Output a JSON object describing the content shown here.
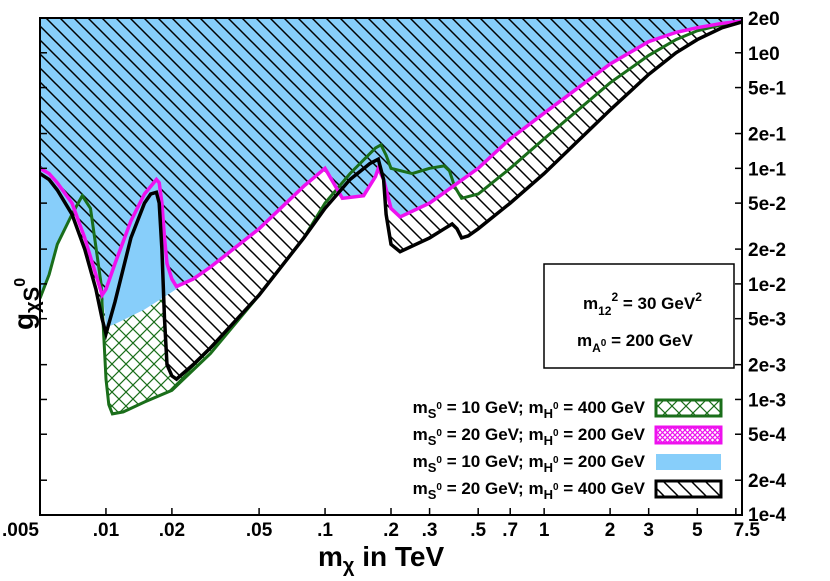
{
  "chart_data": {
    "type": "area",
    "xlabel": "m_χ in TeV",
    "ylabel": "g_χS⁰",
    "xscale": "log",
    "yscale": "log",
    "xlim": [
      0.005,
      8.0
    ],
    "ylim": [
      0.0001,
      2.0
    ],
    "x_ticks": [
      {
        "value": 0.005,
        "label": ".005"
      },
      {
        "value": 0.01,
        "label": ".01"
      },
      {
        "value": 0.02,
        "label": ".02"
      },
      {
        "value": 0.05,
        "label": ".05"
      },
      {
        "value": 0.1,
        "label": ".1"
      },
      {
        "value": 0.2,
        "label": ".2"
      },
      {
        "value": 0.3,
        "label": ".3"
      },
      {
        "value": 0.5,
        "label": ".5"
      },
      {
        "value": 0.7,
        "label": ".7"
      },
      {
        "value": 1,
        "label": "1"
      },
      {
        "value": 2,
        "label": "2"
      },
      {
        "value": 3,
        "label": "3"
      },
      {
        "value": 5,
        "label": "5"
      },
      {
        "value": 7.5,
        "label": "7.5"
      }
    ],
    "y_ticks": [
      {
        "value": 2.0,
        "label": "2e0"
      },
      {
        "value": 1.0,
        "label": "1e0"
      },
      {
        "value": 0.5,
        "label": "5e-1"
      },
      {
        "value": 0.2,
        "label": "2e-1"
      },
      {
        "value": 0.1,
        "label": "1e-1"
      },
      {
        "value": 0.05,
        "label": "5e-2"
      },
      {
        "value": 0.02,
        "label": "2e-2"
      },
      {
        "value": 0.01,
        "label": "1e-2"
      },
      {
        "value": 0.005,
        "label": "5e-3"
      },
      {
        "value": 0.002,
        "label": "2e-3"
      },
      {
        "value": 0.001,
        "label": "1e-3"
      },
      {
        "value": 0.0005,
        "label": "5e-4"
      },
      {
        "value": 0.0002,
        "label": "2e-4"
      },
      {
        "value": 0.0001,
        "label": "1e-4"
      }
    ],
    "annotations": {
      "m12": {
        "base": "m",
        "sub": "12",
        "sup": "2",
        "rest": " = 30 GeV",
        "rest_sup": "2"
      },
      "mA": {
        "base": "m",
        "sub": "A",
        "subsup": "0",
        "rest": " = 200 GeV"
      }
    },
    "legend_position": "bottom-right",
    "series": [
      {
        "name": "m_S⁰ = 10 GeV; m_H⁰ = 400 GeV",
        "label": {
          "a": "S",
          "b": " = 10 GeV; m",
          "c": "H",
          "d": " = 400 GeV"
        },
        "color": "#1a6e1a",
        "fill": "crosshatch",
        "boundary": [
          [
            0.005,
            0.0075
          ],
          [
            0.0055,
            0.012
          ],
          [
            0.006,
            0.022
          ],
          [
            0.007,
            0.04
          ],
          [
            0.0078,
            0.058
          ],
          [
            0.0085,
            0.045
          ],
          [
            0.0095,
            0.01
          ],
          [
            0.01,
            0.0015
          ],
          [
            0.0103,
            0.0009
          ],
          [
            0.0107,
            0.00075
          ],
          [
            0.012,
            0.00078
          ],
          [
            0.015,
            0.00095
          ],
          [
            0.02,
            0.0012
          ],
          [
            0.03,
            0.0025
          ],
          [
            0.05,
            0.008
          ],
          [
            0.08,
            0.025
          ],
          [
            0.1,
            0.05
          ],
          [
            0.13,
            0.09
          ],
          [
            0.17,
            0.15
          ],
          [
            0.18,
            0.16
          ],
          [
            0.19,
            0.13
          ],
          [
            0.2,
            0.1
          ],
          [
            0.25,
            0.09
          ],
          [
            0.3,
            0.1
          ],
          [
            0.35,
            0.105
          ],
          [
            0.37,
            0.095
          ],
          [
            0.39,
            0.07
          ],
          [
            0.42,
            0.055
          ],
          [
            0.5,
            0.06
          ],
          [
            0.7,
            0.1
          ],
          [
            1.0,
            0.18
          ],
          [
            2.0,
            0.55
          ],
          [
            3.0,
            0.95
          ],
          [
            4.0,
            1.3
          ],
          [
            5.0,
            1.55
          ],
          [
            6.5,
            1.75
          ],
          [
            8.0,
            1.85
          ]
        ]
      },
      {
        "name": "m_S⁰ = 20 GeV; m_H⁰ = 200 GeV",
        "label": {
          "a": "S",
          "b": " = 20 GeV; m",
          "c": "H",
          "d": " = 200 GeV"
        },
        "color": "#ee11ee",
        "fill": "dense-crosshatch",
        "boundary": [
          [
            0.005,
            0.1
          ],
          [
            0.0055,
            0.09
          ],
          [
            0.006,
            0.075
          ],
          [
            0.007,
            0.05
          ],
          [
            0.008,
            0.025
          ],
          [
            0.009,
            0.012
          ],
          [
            0.0096,
            0.008
          ],
          [
            0.01,
            0.009
          ],
          [
            0.011,
            0.015
          ],
          [
            0.013,
            0.035
          ],
          [
            0.015,
            0.06
          ],
          [
            0.017,
            0.08
          ],
          [
            0.0175,
            0.075
          ],
          [
            0.018,
            0.05
          ],
          [
            0.0185,
            0.025
          ],
          [
            0.019,
            0.015
          ],
          [
            0.02,
            0.011
          ],
          [
            0.021,
            0.0095
          ],
          [
            0.025,
            0.011
          ],
          [
            0.03,
            0.014
          ],
          [
            0.05,
            0.03
          ],
          [
            0.08,
            0.07
          ],
          [
            0.1,
            0.1
          ],
          [
            0.12,
            0.055
          ],
          [
            0.15,
            0.058
          ],
          [
            0.17,
            0.085
          ],
          [
            0.175,
            0.1
          ],
          [
            0.185,
            0.08
          ],
          [
            0.2,
            0.045
          ],
          [
            0.22,
            0.038
          ],
          [
            0.3,
            0.05
          ],
          [
            0.5,
            0.1
          ],
          [
            0.7,
            0.18
          ],
          [
            1.0,
            0.3
          ],
          [
            2.0,
            0.8
          ],
          [
            3.0,
            1.25
          ],
          [
            4.0,
            1.5
          ],
          [
            5.0,
            1.65
          ],
          [
            6.5,
            1.8
          ],
          [
            8.0,
            1.88
          ]
        ]
      },
      {
        "name": "m_S⁰ = 10 GeV; m_H⁰ = 200 GeV",
        "label": {
          "a": "S",
          "b": " = 10 GeV; m",
          "c": "H",
          "d": " = 200 GeV"
        },
        "color": "#87cefa",
        "fill": "solid",
        "boundary": [
          [
            0.005,
            0.0075
          ],
          [
            0.0055,
            0.012
          ],
          [
            0.006,
            0.022
          ],
          [
            0.007,
            0.04
          ],
          [
            0.0078,
            0.058
          ],
          [
            0.0085,
            0.045
          ],
          [
            0.0095,
            0.012
          ],
          [
            0.01,
            0.0042
          ],
          [
            0.011,
            0.0045
          ],
          [
            0.015,
            0.006
          ],
          [
            0.02,
            0.0085
          ],
          [
            0.03,
            0.014
          ],
          [
            0.05,
            0.03
          ],
          [
            0.08,
            0.07
          ],
          [
            0.1,
            0.1
          ],
          [
            0.12,
            0.066
          ],
          [
            0.15,
            0.075
          ],
          [
            0.17,
            0.11
          ],
          [
            0.175,
            0.13
          ],
          [
            0.185,
            0.1
          ],
          [
            0.2,
            0.055
          ],
          [
            0.22,
            0.045
          ],
          [
            0.3,
            0.06
          ],
          [
            0.5,
            0.12
          ],
          [
            0.7,
            0.21
          ],
          [
            1.0,
            0.35
          ],
          [
            2.0,
            0.9
          ],
          [
            3.0,
            1.35
          ],
          [
            4.0,
            1.55
          ],
          [
            5.0,
            1.7
          ],
          [
            6.5,
            1.82
          ],
          [
            8.0,
            1.9
          ]
        ]
      },
      {
        "name": "m_S⁰ = 20 GeV; m_H⁰ = 400 GeV",
        "label": {
          "a": "S",
          "b": " = 20 GeV; m",
          "c": "H",
          "d": " = 400 GeV"
        },
        "color": "#000000",
        "fill": "hatch",
        "boundary": [
          [
            0.005,
            0.09
          ],
          [
            0.0055,
            0.08
          ],
          [
            0.006,
            0.065
          ],
          [
            0.007,
            0.04
          ],
          [
            0.008,
            0.02
          ],
          [
            0.009,
            0.009
          ],
          [
            0.0096,
            0.005
          ],
          [
            0.01,
            0.0037
          ],
          [
            0.011,
            0.007
          ],
          [
            0.013,
            0.025
          ],
          [
            0.015,
            0.05
          ],
          [
            0.016,
            0.06
          ],
          [
            0.017,
            0.062
          ],
          [
            0.0175,
            0.05
          ],
          [
            0.018,
            0.02
          ],
          [
            0.0185,
            0.005
          ],
          [
            0.019,
            0.002
          ],
          [
            0.02,
            0.0016
          ],
          [
            0.021,
            0.0015
          ],
          [
            0.025,
            0.002
          ],
          [
            0.03,
            0.0028
          ],
          [
            0.05,
            0.008
          ],
          [
            0.08,
            0.025
          ],
          [
            0.1,
            0.045
          ],
          [
            0.13,
            0.08
          ],
          [
            0.16,
            0.11
          ],
          [
            0.175,
            0.12
          ],
          [
            0.185,
            0.08
          ],
          [
            0.19,
            0.04
          ],
          [
            0.2,
            0.022
          ],
          [
            0.22,
            0.019
          ],
          [
            0.3,
            0.025
          ],
          [
            0.35,
            0.03
          ],
          [
            0.38,
            0.033
          ],
          [
            0.4,
            0.03
          ],
          [
            0.42,
            0.025
          ],
          [
            0.45,
            0.026
          ],
          [
            0.5,
            0.03
          ],
          [
            0.7,
            0.05
          ],
          [
            1.0,
            0.09
          ],
          [
            2.0,
            0.32
          ],
          [
            3.0,
            0.65
          ],
          [
            4.0,
            1.0
          ],
          [
            5.0,
            1.3
          ],
          [
            6.5,
            1.65
          ],
          [
            8.0,
            1.85
          ]
        ]
      }
    ]
  }
}
